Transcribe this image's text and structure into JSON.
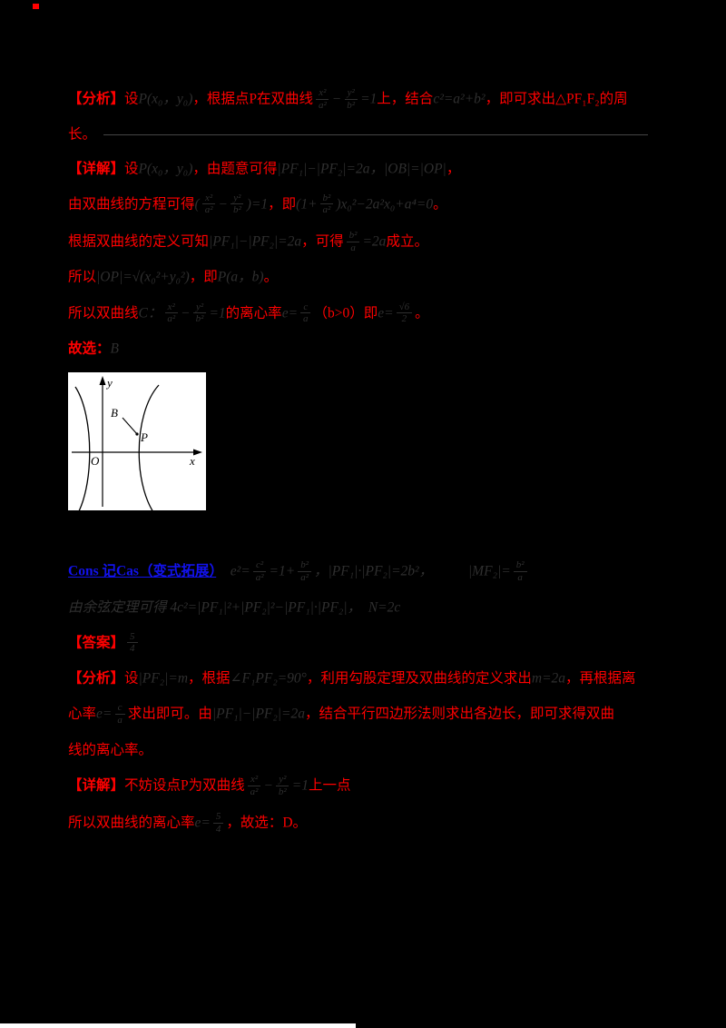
{
  "page": {
    "background": "#000000",
    "colors": {
      "red_text": "#ff0000",
      "dark_math_text": "#2f2f2f",
      "blue_link": "#1212ee",
      "figure_bg": "#ffffff",
      "rule": "#464646"
    },
    "artifacts": {
      "top_left_speck_color": "#ff0000",
      "bottom_strip_color": "#ffffff"
    }
  },
  "figure": {
    "description": "hyperbola sketch with two branches, axes and labeled points",
    "labels": {
      "y": "y",
      "x": "x",
      "O": "O",
      "B": "B",
      "P": "P"
    }
  },
  "blocks": [
    {
      "type": "line",
      "name": "analysis-line-1",
      "runs": [
        {
          "c": "red",
          "b": 1,
          "s": "【分析】"
        },
        {
          "c": "red",
          "s": "设"
        },
        {
          "c": "dark",
          "s": "P(x₀，y₀)"
        },
        {
          "c": "red",
          "s": "，根据点P在双曲线"
        },
        {
          "c": "dark",
          "frac": [
            "x²",
            "a²"
          ]
        },
        {
          "c": "dark",
          "s": "−"
        },
        {
          "c": "dark",
          "frac": [
            "y²",
            "b²"
          ]
        },
        {
          "c": "dark",
          "s": "=1"
        },
        {
          "c": "red",
          "s": "上，结合"
        },
        {
          "c": "dark",
          "s": "c²=a²+b²"
        },
        {
          "c": "red",
          "s": "，即可求出△PF₁F₂的周"
        }
      ]
    },
    {
      "type": "line",
      "rule": true,
      "name": "analysis-line-2",
      "runs": [
        {
          "c": "red",
          "s": "长。"
        }
      ]
    },
    {
      "type": "line",
      "name": "solution-line-1",
      "runs": [
        {
          "c": "red",
          "b": 1,
          "s": "【详解】"
        },
        {
          "c": "red",
          "s": "设"
        },
        {
          "c": "dark",
          "s": "P(x₀，y₀)"
        },
        {
          "c": "red",
          "s": "，由题意可得"
        },
        {
          "c": "dark",
          "s": "|PF₁|−|PF₂|=2a，|OB|=|OP|"
        },
        {
          "c": "red",
          "s": "，"
        }
      ]
    },
    {
      "type": "line",
      "name": "solution-line-2",
      "runs": [
        {
          "c": "red",
          "s": "由双曲线的方程可得"
        },
        {
          "c": "dark",
          "s": "("
        },
        {
          "c": "dark",
          "frac": [
            "x²",
            "a²"
          ]
        },
        {
          "c": "dark",
          "s": "−"
        },
        {
          "c": "dark",
          "frac": [
            "y²",
            "b²"
          ]
        },
        {
          "c": "dark",
          "s": ")=1"
        },
        {
          "c": "red",
          "s": "，即"
        },
        {
          "c": "dark",
          "s": "(1+"
        },
        {
          "c": "dark",
          "frac": [
            "b²",
            "a²"
          ]
        },
        {
          "c": "dark",
          "s": ")x₀²−2a²x₀+a⁴=0"
        },
        {
          "c": "red",
          "s": "。"
        }
      ]
    },
    {
      "type": "line",
      "name": "solution-line-3",
      "runs": [
        {
          "c": "red",
          "s": "根据双曲线的定义可知"
        },
        {
          "c": "dark",
          "s": "|PF₁|−|PF₂|=2a"
        },
        {
          "c": "red",
          "s": "，可得"
        },
        {
          "c": "dark",
          "frac": [
            "b²",
            "a"
          ]
        },
        {
          "c": "dark",
          "s": "=2a"
        },
        {
          "c": "red",
          "s": "成立。"
        }
      ]
    },
    {
      "type": "line",
      "name": "solution-line-4",
      "runs": [
        {
          "c": "red",
          "s": "所以"
        },
        {
          "c": "dark",
          "s": "|OP|=√(x₀²+y₀²)"
        },
        {
          "c": "red",
          "s": "，即"
        },
        {
          "c": "dark",
          "s": "P(a，b)"
        },
        {
          "c": "red",
          "s": "。"
        }
      ]
    },
    {
      "type": "line",
      "name": "solution-line-5",
      "runs": [
        {
          "c": "red",
          "s": "所以双曲线"
        },
        {
          "c": "dark",
          "s": "C："
        },
        {
          "c": "dark",
          "frac": [
            "x²",
            "a²"
          ]
        },
        {
          "c": "dark",
          "s": "−"
        },
        {
          "c": "dark",
          "frac": [
            "y²",
            "b²"
          ]
        },
        {
          "c": "dark",
          "s": "=1"
        },
        {
          "c": "red",
          "s": "的离心率"
        },
        {
          "c": "dark",
          "s": "e="
        },
        {
          "c": "dark",
          "frac": [
            "c",
            "a"
          ]
        },
        {
          "c": "red",
          "s": "（b>0）即"
        },
        {
          "c": "dark",
          "s": "e="
        },
        {
          "c": "dark",
          "frac": [
            "√6",
            "2"
          ]
        },
        {
          "c": "red",
          "s": "。"
        }
      ]
    },
    {
      "type": "line",
      "name": "answer-choice-line",
      "runs": [
        {
          "c": "red",
          "b": 1,
          "s": "故选："
        },
        {
          "c": "dark",
          "s": "B"
        }
      ]
    },
    {
      "type": "figure"
    },
    {
      "type": "gap"
    },
    {
      "type": "line",
      "name": "extension-line-1",
      "runs": [
        {
          "c": "blue",
          "s": "Cons 记Cas（变式拓展）",
          "name": "extension-link"
        },
        {
          "c": "dark",
          "s": "　e²="
        },
        {
          "c": "dark",
          "frac": [
            "c²",
            "a²"
          ]
        },
        {
          "c": "dark",
          "s": "=1+"
        },
        {
          "c": "dark",
          "frac": [
            "b²",
            "a²"
          ]
        },
        {
          "c": "dark",
          "s": "，|PF₁|·|PF₂|=2b²，　　　|MF₂|="
        },
        {
          "c": "dark",
          "frac": [
            "b²",
            "a"
          ]
        }
      ]
    },
    {
      "type": "line",
      "name": "extension-line-2",
      "runs": [
        {
          "c": "dark",
          "s": "由余弦定理可得 4c²=|PF₁|²+|PF₂|²−|PF₁|·|PF₂|，　N=2c"
        }
      ]
    },
    {
      "type": "line",
      "name": "answer-line",
      "runs": [
        {
          "c": "red",
          "b": 1,
          "s": "【答案】"
        },
        {
          "c": "dark",
          "frac": [
            "5",
            "4"
          ]
        }
      ]
    },
    {
      "type": "line",
      "name": "analysis2-line-1",
      "runs": [
        {
          "c": "red",
          "b": 1,
          "s": "【分析】"
        },
        {
          "c": "red",
          "s": "设"
        },
        {
          "c": "dark",
          "s": "|PF₂|=m"
        },
        {
          "c": "red",
          "s": "，根据"
        },
        {
          "c": "dark",
          "s": "∠F₁PF₂=90°"
        },
        {
          "c": "red",
          "s": "，利用勾股定理及双曲线的定义求出"
        },
        {
          "c": "dark",
          "s": "m=2a"
        },
        {
          "c": "red",
          "s": "，再根据离"
        }
      ]
    },
    {
      "type": "line",
      "name": "analysis2-line-2",
      "runs": [
        {
          "c": "red",
          "s": "心率"
        },
        {
          "c": "dark",
          "s": "e="
        },
        {
          "c": "dark",
          "frac": [
            "c",
            "a"
          ]
        },
        {
          "c": "red",
          "s": "求出即可。由"
        },
        {
          "c": "dark",
          "s": "|PF₁|−|PF₂|=2a"
        },
        {
          "c": "red",
          "s": "，结合平行四边形法则求出各边长，即可求得双曲"
        }
      ]
    },
    {
      "type": "line",
      "name": "analysis2-line-3",
      "runs": [
        {
          "c": "red",
          "s": "线的离心率。"
        }
      ]
    },
    {
      "type": "line",
      "name": "solution2-line-1",
      "runs": [
        {
          "c": "red",
          "b": 1,
          "s": "【详解】"
        },
        {
          "c": "red",
          "s": "不妨设点P为双曲线"
        },
        {
          "c": "dark",
          "frac": [
            "x²",
            "a²"
          ]
        },
        {
          "c": "dark",
          "s": "−"
        },
        {
          "c": "dark",
          "frac": [
            "y²",
            "b²"
          ]
        },
        {
          "c": "dark",
          "s": "=1"
        },
        {
          "c": "red",
          "s": "上一点"
        }
      ]
    },
    {
      "type": "line",
      "name": "solution2-line-2",
      "runs": [
        {
          "c": "red",
          "s": "所以双曲线的离心率"
        },
        {
          "c": "dark",
          "s": "e="
        },
        {
          "c": "dark",
          "frac": [
            "5",
            "4"
          ]
        },
        {
          "c": "red",
          "s": "，故选：D。"
        }
      ]
    }
  ]
}
